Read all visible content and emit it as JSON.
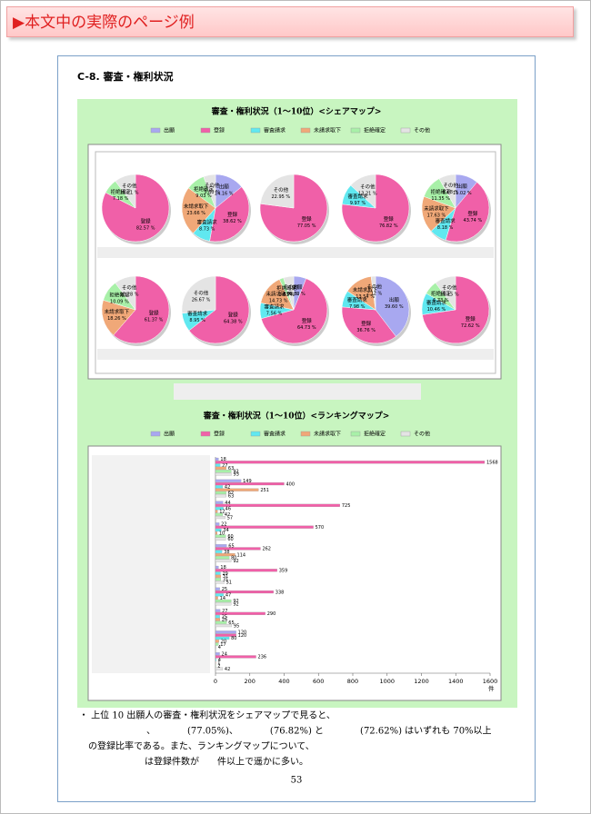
{
  "header": {
    "title": "▶本文中の実際のページ例"
  },
  "section": {
    "title": "C-8.  審査・権利状況"
  },
  "share_map": {
    "title": "審査・権利状況（1～10位）<シェアマップ>",
    "series_names": [
      "出願",
      "登録",
      "審査請求",
      "未請求取下",
      "拒絶確定",
      "その他"
    ],
    "colors": [
      "#a8a8f0",
      "#f060a8",
      "#60e8f0",
      "#f0a878",
      "#a8f0a8",
      "#e4e4e4"
    ],
    "pies": [
      {
        "values": [
          null,
          82.57,
          null,
          null,
          7.18,
          10.21
        ],
        "value_labels": [
          null,
          "82.57 %",
          null,
          null,
          "7.18 %",
          "10.21 %"
        ]
      },
      {
        "values": [
          14.16,
          38.62,
          8.73,
          23.66,
          9.03,
          5.8
        ],
        "value_labels": [
          "14.16 %",
          "38.62 %",
          "8.73 %",
          "23.66 %",
          "9.03 %",
          "5.80 %"
        ]
      },
      {
        "values": [
          null,
          77.05,
          null,
          null,
          null,
          22.95
        ],
        "value_labels": [
          null,
          "77.05 %",
          null,
          null,
          null,
          "22.95 %"
        ]
      },
      {
        "values": [
          null,
          76.82,
          9.97,
          null,
          null,
          13.21
        ],
        "value_labels": [
          null,
          "76.82 %",
          "9.97 %",
          null,
          null,
          "13.21 %"
        ]
      },
      {
        "values": [
          11.02,
          43.74,
          8.18,
          17.63,
          11.35,
          8.08
        ],
        "value_labels": [
          "11.02 %",
          "43.74 %",
          "8.18 %",
          "17.63 %",
          "11.35 %",
          "8.08 %"
        ]
      },
      {
        "values": [
          null,
          61.37,
          null,
          18.26,
          10.09,
          10.28
        ],
        "value_labels": [
          null,
          "61.37 %",
          null,
          "18.26 %",
          "10.09 %",
          "10.28 %"
        ]
      },
      {
        "values": [
          null,
          64.38,
          8.95,
          null,
          null,
          26.67
        ],
        "value_labels": [
          null,
          "64.38 %",
          "8.95 %",
          null,
          null,
          "26.67 %"
        ]
      },
      {
        "values": [
          6.03,
          64.73,
          7.56,
          14.73,
          2.03,
          4.92
        ],
        "value_labels": [
          "6.03 %",
          "64.73 %",
          "7.56 %",
          "14.73 %",
          "2.03 %",
          "4.92 %"
        ]
      },
      {
        "values": [
          39.6,
          36.76,
          7.98,
          13.54,
          null,
          2.12
        ],
        "value_labels": [
          "39.60 %",
          "36.76 %",
          "7.98 %",
          "13.54 %",
          null,
          "2.12 %"
        ]
      },
      {
        "values": [
          null,
          72.62,
          10.46,
          null,
          6.73,
          10.15
        ],
        "value_labels": [
          null,
          "72.62 %",
          "10.46 %",
          null,
          "6.73 %",
          "10.15 %"
        ]
      }
    ]
  },
  "ranking_map": {
    "title": "審査・権利状況（1～10位）<ランキングマップ>",
    "series": [
      {
        "name": "出願",
        "color": "#a8a8f0",
        "values": [
          18,
          149,
          44,
          22,
          65,
          18,
          25,
          27,
          120,
          24
        ]
      },
      {
        "name": "登録",
        "color": "#f060a8",
        "values": [
          1568,
          400,
          725,
          570,
          262,
          359,
          338,
          290,
          120,
          236
        ]
      },
      {
        "name": "審査請求",
        "color": "#60e8f0",
        "values": [
          27,
          42,
          46,
          34,
          38,
          29,
          47,
          25,
          80,
          4
        ]
      },
      {
        "name": "未請求取下",
        "color": "#f0a878",
        "values": [
          63,
          251,
          12,
          10,
          114,
          31,
          14,
          26,
          20,
          1
        ]
      },
      {
        "name": "拒絶確定",
        "color": "#a8f0a8",
        "values": [
          92,
          62,
          42,
          60,
          80,
          31,
          92,
          65,
          17,
          2
        ]
      },
      {
        "name": "その他",
        "color": "#e4e4e4",
        "values": [
          93,
          63,
          57,
          60,
          92,
          51,
          92,
          95,
          4,
          42
        ]
      }
    ],
    "xlim": [
      0,
      1600
    ],
    "xticks": [
      0,
      200,
      400,
      600,
      800,
      1000,
      1200,
      1400,
      1600
    ],
    "x_unit": "件"
  },
  "paragraph": {
    "lines": [
      "・ 上位 10 出願人の審査・権利状況をシェアマップで見ると、",
      "、　　　　(77.05%)、　　　　(76.82%)  と　　　　(72.62%)  はいずれも  70%以上",
      "の登録比率である。また、ランキングマップについて、",
      "は登録件数が　　件以上で遥かに多い。"
    ]
  },
  "page_number": "53"
}
